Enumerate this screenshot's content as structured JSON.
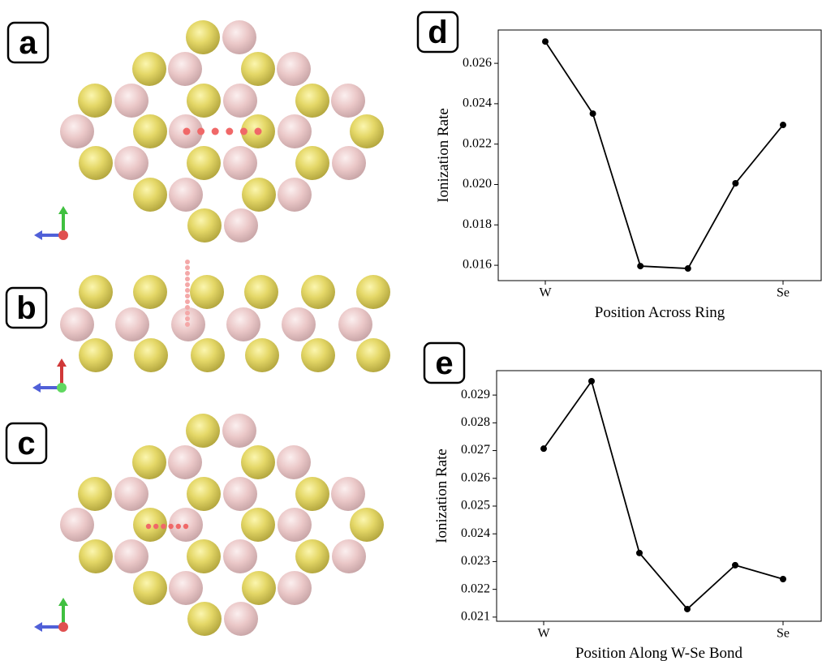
{
  "panel_labels": [
    "a",
    "b",
    "c",
    "d",
    "e"
  ],
  "chart_data": [
    {
      "type": "line",
      "xlabel": "Position Across Ring",
      "ylabel": "Ionization Rate",
      "categories": [
        "W",
        null,
        null,
        null,
        null,
        "Se"
      ],
      "series": [
        {
          "color": "#000000",
          "values": [
            0.02708,
            0.02351,
            0.01596,
            0.01584,
            0.02006,
            0.02295
          ]
        }
      ],
      "ylim": [
        0.01524,
        0.02765
      ],
      "yticks": [
        0.016,
        0.018,
        {
          "value": 0.02,
          "label": "0.020"
        },
        0.022,
        0.024,
        0.026
      ]
    },
    {
      "type": "line",
      "xlabel": "Position Along W-Se Bond",
      "ylabel": "Ionization Rate",
      "categories": [
        "W",
        null,
        null,
        null,
        null,
        "Se"
      ],
      "series": [
        {
          "color": "#000000",
          "values": [
            0.02707,
            0.0295,
            0.02331,
            0.02129,
            0.02287,
            0.02237
          ]
        }
      ],
      "ylim": [
        0.02085,
        0.02988
      ],
      "yticks": [
        0.021,
        0.022,
        0.023,
        0.024,
        0.025,
        0.026,
        0.027,
        0.028,
        0.029
      ]
    }
  ]
}
